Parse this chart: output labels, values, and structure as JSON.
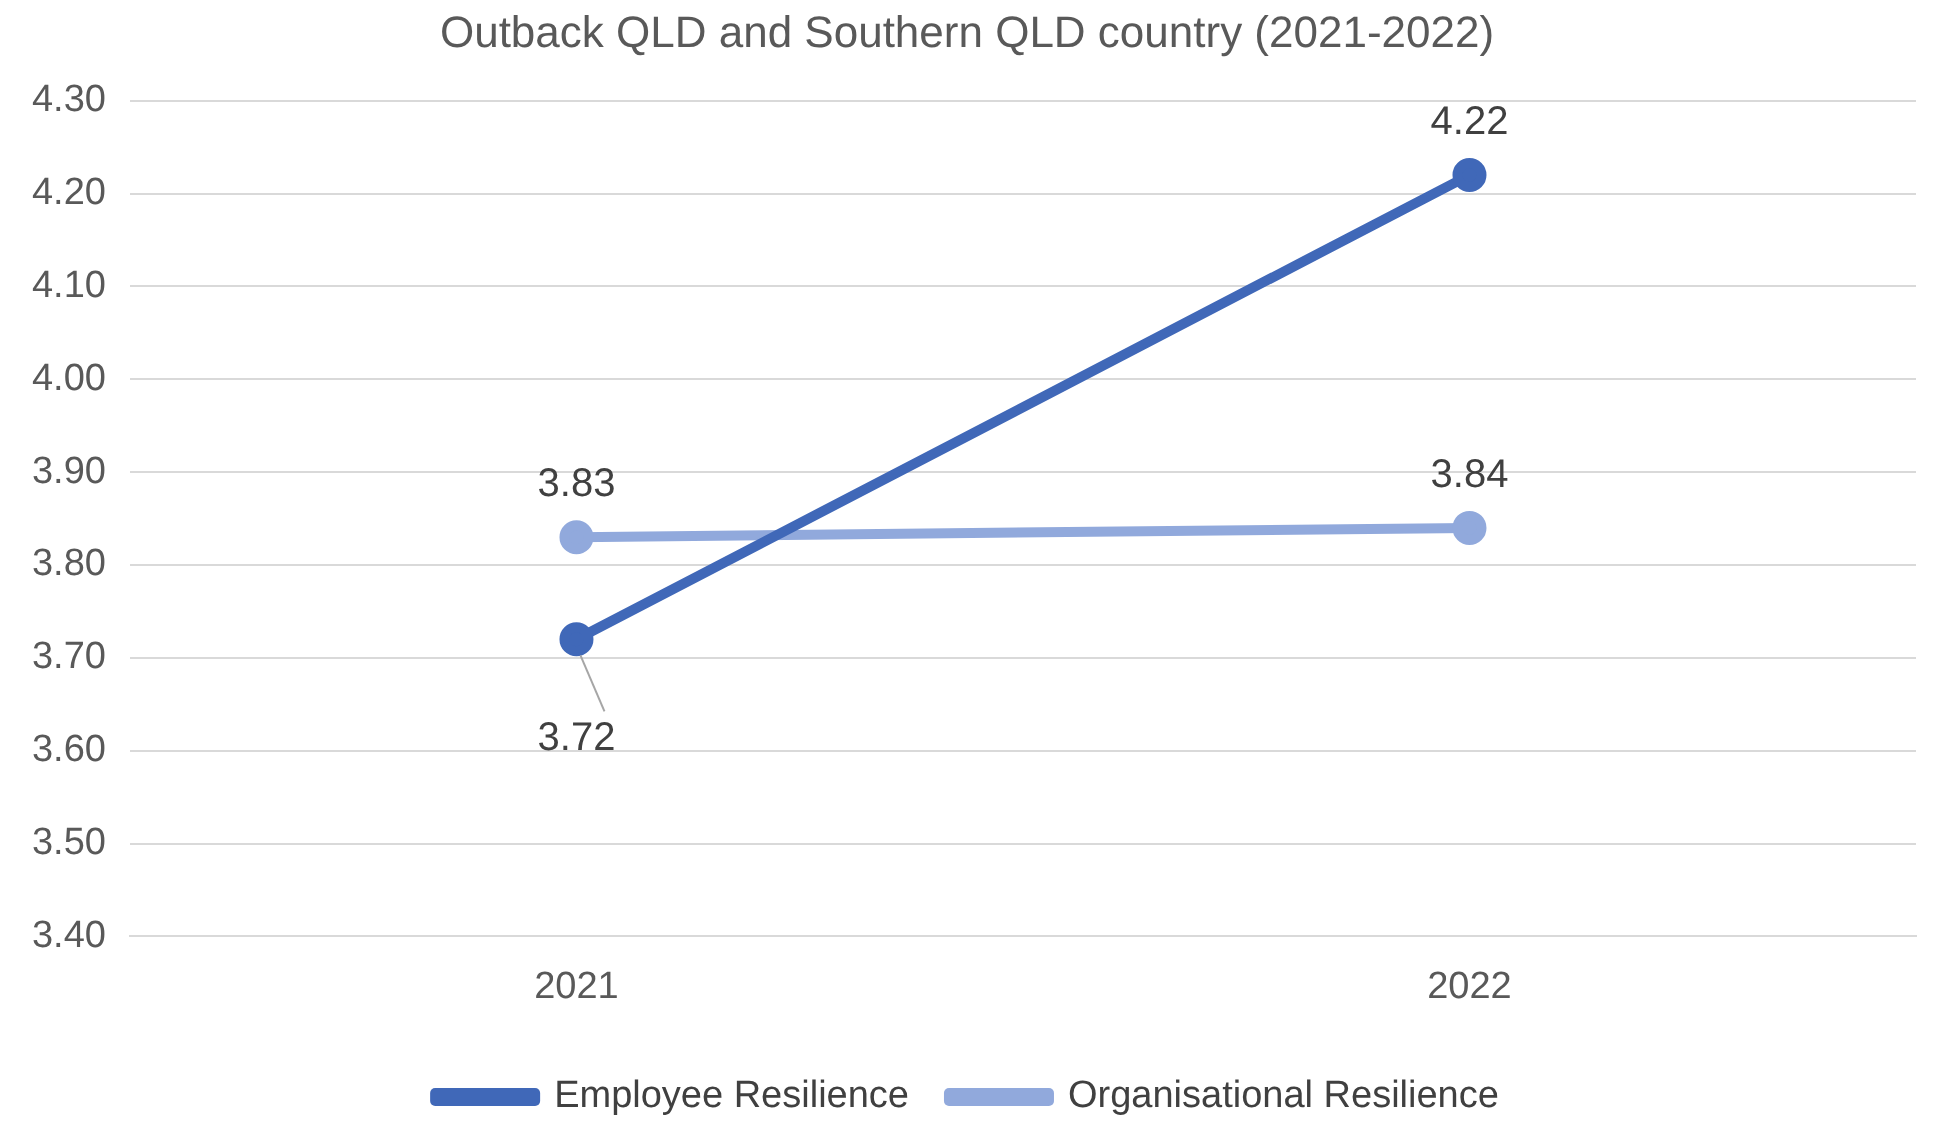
{
  "chart_data": {
    "type": "line",
    "title": "Outback QLD and Southern QLD country (2021-2022)",
    "categories": [
      "2021",
      "2022"
    ],
    "series": [
      {
        "name": "Employee Resilience",
        "color": "#4068b8",
        "values": [
          3.72,
          4.22
        ]
      },
      {
        "name": "Organisational Resilience",
        "color": "#91a9dc",
        "values": [
          3.83,
          3.84
        ]
      }
    ],
    "ylim": [
      3.4,
      4.3
    ],
    "yticks": [
      {
        "value": 3.4,
        "label": "3.40"
      },
      {
        "value": 3.5,
        "label": "3.50"
      },
      {
        "value": 3.6,
        "label": "3.60"
      },
      {
        "value": 3.7,
        "label": "3.70"
      },
      {
        "value": 3.8,
        "label": "3.80"
      },
      {
        "value": 3.9,
        "label": "3.90"
      },
      {
        "value": 4.0,
        "label": "4.00"
      },
      {
        "value": 4.1,
        "label": "4.10"
      },
      {
        "value": 4.2,
        "label": "4.20"
      },
      {
        "value": 4.3,
        "label": "4.30"
      }
    ],
    "grid": "y",
    "legend": "bottom",
    "marker": "circle",
    "line_style": "solid",
    "data_labels": true
  }
}
